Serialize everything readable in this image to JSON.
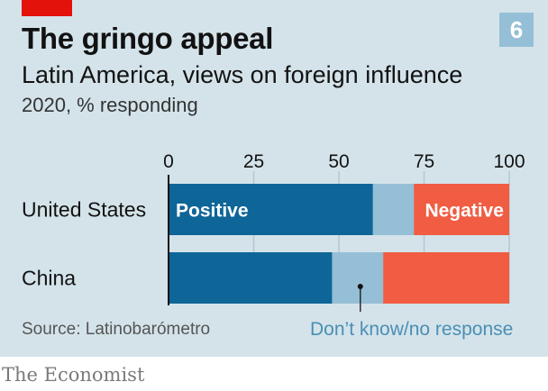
{
  "header": {
    "title": "The gringo appeal",
    "subtitle": "Latin America, views on foreign influence",
    "unit": "2020, % responding",
    "badge": "6"
  },
  "footer": {
    "source": "Source: Latinobarómetro",
    "brand": "The Economist"
  },
  "chart_data": {
    "type": "bar",
    "orientation": "horizontal",
    "stacked": true,
    "categories": [
      "United States",
      "China"
    ],
    "series": [
      {
        "name": "Positive",
        "values": [
          60,
          48
        ],
        "color": "#0e6597"
      },
      {
        "name": "Don't know/no response",
        "values": [
          12,
          15
        ],
        "color": "#95bfd6"
      },
      {
        "name": "Negative",
        "values": [
          28,
          37
        ],
        "color": "#f05d42"
      }
    ],
    "xlim": [
      0,
      100
    ],
    "xticks": [
      0,
      25,
      50,
      75,
      100
    ],
    "inline_labels": {
      "positive": "Positive",
      "negative": "Negative"
    },
    "annotation": "Don’t know/no response",
    "grid": true
  }
}
